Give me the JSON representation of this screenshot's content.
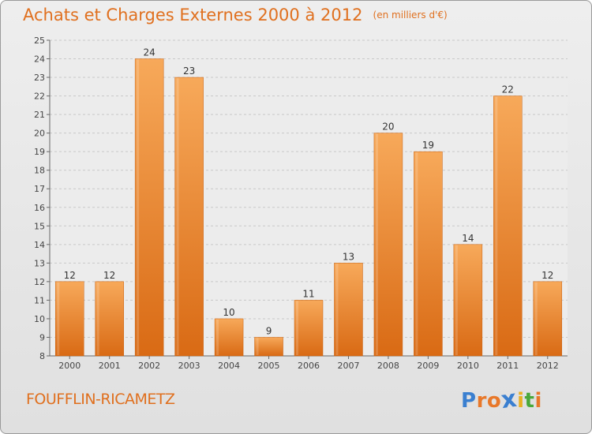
{
  "chart_data": {
    "type": "bar",
    "title": "Achats et Charges Externes 2000 à 2012",
    "subtitle": "(en milliers d'€)",
    "categories": [
      "2000",
      "2001",
      "2002",
      "2003",
      "2004",
      "2005",
      "2006",
      "2007",
      "2008",
      "2009",
      "2010",
      "2011",
      "2012"
    ],
    "values": [
      12,
      12,
      24,
      23,
      10,
      9,
      11,
      13,
      20,
      19,
      14,
      22,
      12
    ],
    "ylim": [
      8,
      25
    ],
    "yticks": [
      8,
      9,
      10,
      11,
      12,
      13,
      14,
      15,
      16,
      17,
      18,
      19,
      20,
      21,
      22,
      23,
      24,
      25
    ],
    "grid": true,
    "bar_color": "#f0903a"
  },
  "commune": "FOUFFLIN-RICAMETZ",
  "logo": {
    "text": "Proxiti",
    "letters": [
      "P",
      "r",
      "o",
      "x",
      "i",
      "t",
      "i"
    ],
    "colors": [
      "#3a7fd0",
      "#e8782a",
      "#e8782a",
      "#3a7fd0",
      "#e8b020",
      "#4aa83a",
      "#e8782a"
    ]
  }
}
